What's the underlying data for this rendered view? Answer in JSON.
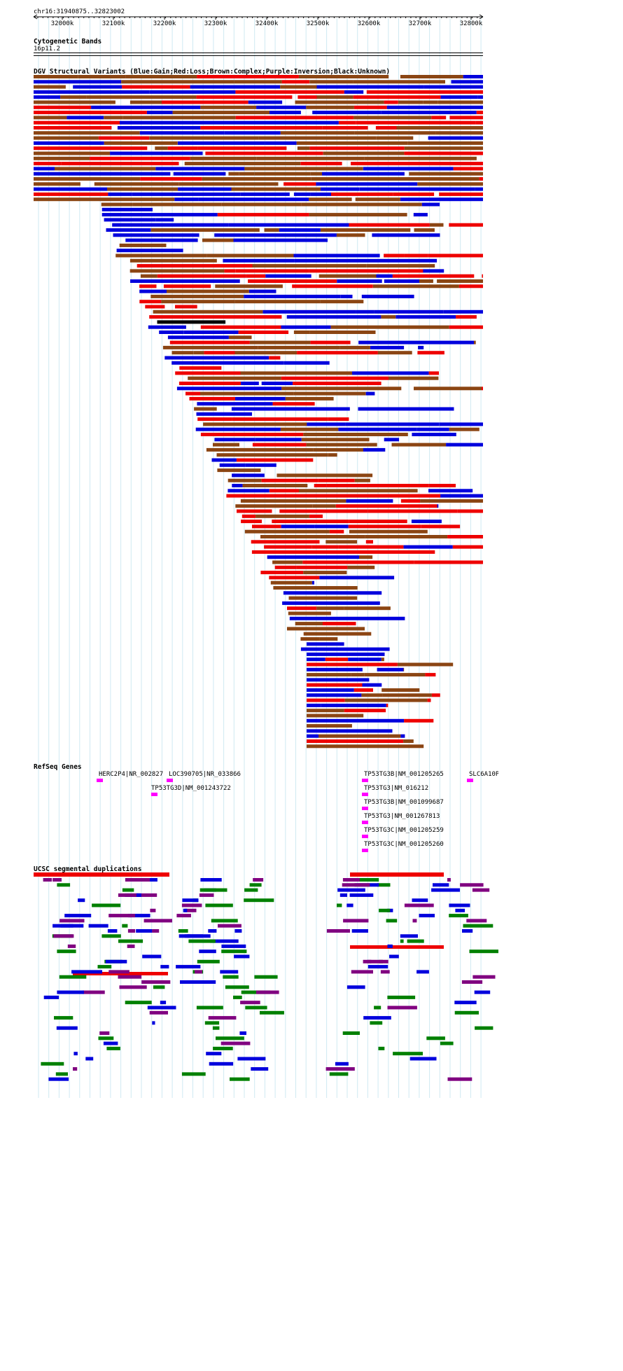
{
  "ruler": {
    "range_label": "chr16:31940875..32823002",
    "ticks": [
      "32000k",
      "32100k",
      "32200k",
      "32300k",
      "32400k",
      "32500k",
      "32600k",
      "32700k",
      "32800k"
    ]
  },
  "cytoband": {
    "title": "Cytogenetic Bands",
    "band": "16p11.2"
  },
  "dgv": {
    "title": "DGV Structural Variants (Blue:Gain;Red:Loss;Brown:Complex;Purple:Inversion;Black:Unknown)",
    "colors": {
      "gain": "#0000dd",
      "loss": "#ee0000",
      "complex": "#8b4513",
      "inversion": "#800080",
      "unknown": "#000000"
    }
  },
  "refseq": {
    "title": "RefSeq Genes",
    "genes": [
      {
        "label": "HERC2P4|NR_002827"
      },
      {
        "label": "LOC390705|NR_033866"
      },
      {
        "label": "TP53TG3D|NM_001243722"
      },
      {
        "label": "TP53TG3B|NM_001205265"
      },
      {
        "label": "TP53TG3|NM_016212"
      },
      {
        "label": "TP53TG3B|NM_001099687"
      },
      {
        "label": "TP53TG3|NM_001267813"
      },
      {
        "label": "TP53TG3C|NM_001205259"
      },
      {
        "label": "TP53TG3C|NM_001205260"
      },
      {
        "label": "SLC6A10P|"
      }
    ],
    "color": "#ff00ff"
  },
  "segdups": {
    "title": "UCSC segmental duplications",
    "colors": [
      "#ee0000",
      "#0000dd",
      "#008000",
      "#800080"
    ]
  }
}
